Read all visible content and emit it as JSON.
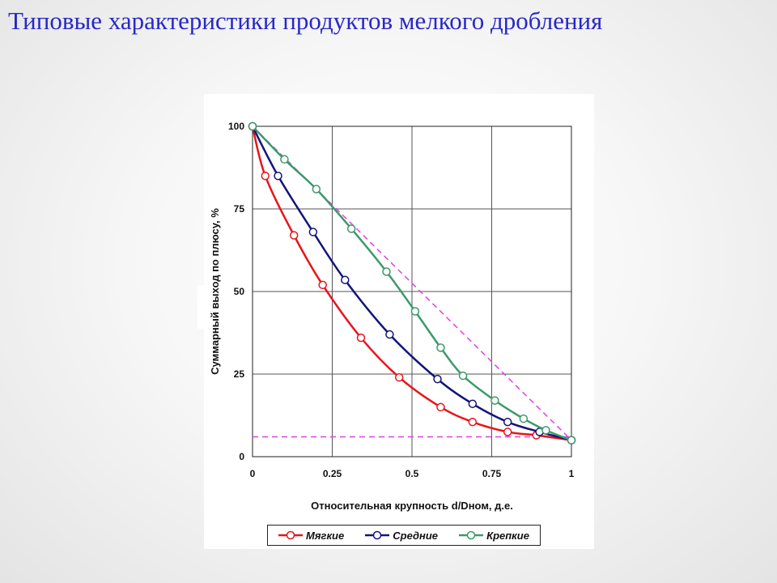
{
  "slide": {
    "title": "Типовые характеристики продуктов мелкого дробления"
  },
  "chart_data": {
    "type": "line",
    "ylabel": "Суммарный выход по плюсу, %",
    "xlabel": "Относительная крупность d/Dном, д.е.",
    "xlim": [
      0,
      1
    ],
    "ylim": [
      0,
      100
    ],
    "x_ticks": [
      "0",
      "0.25",
      "0.5",
      "0.75",
      "1"
    ],
    "y_ticks": [
      "0",
      "25",
      "50",
      "75",
      "100"
    ],
    "grid": true,
    "legend_position": "bottom",
    "series": [
      {
        "name": "Мягкие",
        "color": "#e8141a",
        "x": [
          0,
          0.04,
          0.13,
          0.22,
          0.34,
          0.46,
          0.59,
          0.69,
          0.8,
          0.89,
          1.0
        ],
        "y": [
          100,
          85,
          67,
          52,
          36,
          24,
          15,
          10.5,
          7.5,
          6.5,
          5
        ]
      },
      {
        "name": "Средние",
        "color": "#14147a",
        "x": [
          0,
          0.08,
          0.19,
          0.29,
          0.43,
          0.58,
          0.69,
          0.8,
          0.9,
          1.0
        ],
        "y": [
          100,
          85,
          68,
          53.5,
          37,
          23.5,
          16,
          10.5,
          7.5,
          5
        ]
      },
      {
        "name": "Крепкие",
        "color": "#3c9a6a",
        "x": [
          0,
          0.1,
          0.2,
          0.31,
          0.42,
          0.51,
          0.59,
          0.66,
          0.76,
          0.85,
          0.92,
          1.0
        ],
        "y": [
          100,
          90,
          81,
          69,
          56,
          44,
          33,
          24.5,
          17,
          11.5,
          8,
          5
        ]
      }
    ],
    "reference_lines": [
      {
        "color": "#e040e0",
        "style": "dashed",
        "x": [
          0,
          1
        ],
        "y": [
          100,
          5
        ]
      },
      {
        "color": "#e040e0",
        "style": "dashed",
        "x": [
          0,
          1
        ],
        "y": [
          6,
          6
        ]
      }
    ]
  }
}
